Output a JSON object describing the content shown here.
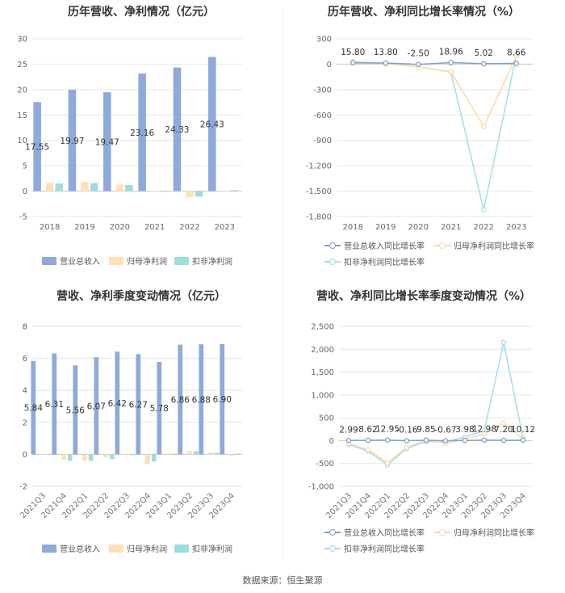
{
  "colors": {
    "revenue": "#8eaadb",
    "parent_profit": "#ffe0b3",
    "deducted_profit": "#9edddf",
    "rev_line": "#7f9fcf",
    "parent_line": "#ffd9a8",
    "deducted_line": "#9fe0e6"
  },
  "footer": {
    "source": "数据来源：恒生聚源"
  },
  "chart_data": [
    {
      "type": "bar",
      "title": "历年营收、净利情况（亿元）",
      "categories": [
        "2018",
        "2019",
        "2020",
        "2021",
        "2022",
        "2023"
      ],
      "ylim": [
        -5,
        30
      ],
      "yticks": [
        -5,
        0,
        5,
        10,
        15,
        20,
        25,
        30
      ],
      "ytick_labels": [
        "-5",
        "0",
        "5",
        "10",
        "15",
        "20",
        "25",
        "30"
      ],
      "series": [
        {
          "name": "营业总收入",
          "values": [
            17.55,
            19.97,
            19.47,
            23.16,
            24.33,
            26.43
          ],
          "labels": [
            "17.55",
            "19.97",
            "19.47",
            "23.16",
            "24.33",
            "26.43"
          ]
        },
        {
          "name": "归母净利润",
          "values": [
            1.6,
            1.8,
            1.3,
            0.1,
            -1.2,
            0.1
          ]
        },
        {
          "name": "扣非净利润",
          "values": [
            1.5,
            1.6,
            1.2,
            0.0,
            -1.1,
            0.2
          ]
        }
      ],
      "legend": "bottom"
    },
    {
      "type": "line",
      "title": "历年营收、净利同比增长率情况（%）",
      "categories": [
        "2018",
        "2019",
        "2020",
        "2021",
        "2022",
        "2023"
      ],
      "ylim": [
        -1800,
        300
      ],
      "yticks": [
        -1800,
        -1500,
        -1200,
        -900,
        -600,
        -300,
        0,
        300
      ],
      "ytick_labels": [
        "-1,800",
        "-1,500",
        "-1,200",
        "-900",
        "-600",
        "-300",
        "0",
        "300"
      ],
      "series": [
        {
          "name": "营业总收入同比增长率",
          "values": [
            15.8,
            13.8,
            -2.5,
            18.96,
            5.02,
            8.66
          ],
          "labels": [
            "15.80",
            "13.80",
            "-2.50",
            "18.96",
            "5.02",
            "8.66"
          ]
        },
        {
          "name": "归母净利润同比增长率",
          "values": [
            30,
            5,
            -30,
            -90,
            -740,
            100
          ]
        },
        {
          "name": "扣非净利润同比增长率",
          "values": [
            20,
            5,
            -30,
            -95,
            -1720,
            110
          ]
        }
      ],
      "legend": "bottom"
    },
    {
      "type": "bar",
      "title": "营收、净利季度变动情况（亿元）",
      "categories": [
        "2021Q3",
        "2021Q4",
        "2022Q1",
        "2022Q2",
        "2022Q3",
        "2022Q4",
        "2023Q1",
        "2023Q2",
        "2023Q3",
        "2023Q4"
      ],
      "ylim": [
        -2,
        8
      ],
      "yticks": [
        -2,
        0,
        2,
        4,
        6,
        8
      ],
      "ytick_labels": [
        "-2",
        "0",
        "2",
        "4",
        "6",
        "8"
      ],
      "series": [
        {
          "name": "营业总收入",
          "values": [
            5.84,
            6.31,
            5.56,
            6.07,
            6.42,
            6.27,
            5.78,
            6.86,
            6.88,
            6.9
          ],
          "labels": [
            "5.84",
            "6.31",
            "5.56",
            "6.07",
            "6.42",
            "6.27",
            "5.78",
            "6.86",
            "6.88",
            "6.90"
          ]
        },
        {
          "name": "归母净利润",
          "values": [
            0.0,
            -0.35,
            -0.4,
            -0.2,
            -0.05,
            -0.6,
            0.05,
            0.2,
            0.12,
            -0.1
          ]
        },
        {
          "name": "扣非净利润",
          "values": [
            0.0,
            -0.4,
            -0.4,
            -0.3,
            -0.05,
            -0.45,
            0.05,
            0.2,
            0.1,
            0.05
          ]
        }
      ],
      "legend": "bottom"
    },
    {
      "type": "line",
      "title": "营收、净利同比增长率季度变动情况（%）",
      "categories": [
        "2021Q3",
        "2021Q4",
        "2022Q1",
        "2022Q2",
        "2022Q3",
        "2022Q4",
        "2023Q1",
        "2023Q2",
        "2023Q3",
        "2023Q4"
      ],
      "ylim": [
        -1000,
        2500
      ],
      "yticks": [
        -1000,
        -500,
        0,
        500,
        1000,
        1500,
        2000,
        2500
      ],
      "ytick_labels": [
        "-1,000",
        "-500",
        "0",
        "500",
        "1,000",
        "1,500",
        "2,000",
        "2,500"
      ],
      "series": [
        {
          "name": "营业总收入同比增长率",
          "values": [
            2.99,
            8.62,
            12.95,
            -0.16,
            9.85,
            -0.67,
            3.98,
            12.98,
            7.2,
            10.12
          ],
          "labels": [
            "2.99",
            "8.62",
            "12.95",
            "-0.16",
            "9.85",
            "-0.67",
            "3.98",
            "12.98",
            "7.20",
            "10.12"
          ]
        },
        {
          "name": "归母净利润同比增长率",
          "values": [
            -60,
            -200,
            -480,
            -150,
            20,
            -60,
            30,
            150,
            380,
            40
          ]
        },
        {
          "name": "扣非净利润同比增长率",
          "values": [
            -80,
            -230,
            -530,
            -170,
            -20,
            -30,
            80,
            220,
            2150,
            60
          ]
        }
      ],
      "legend": "bottom"
    }
  ]
}
